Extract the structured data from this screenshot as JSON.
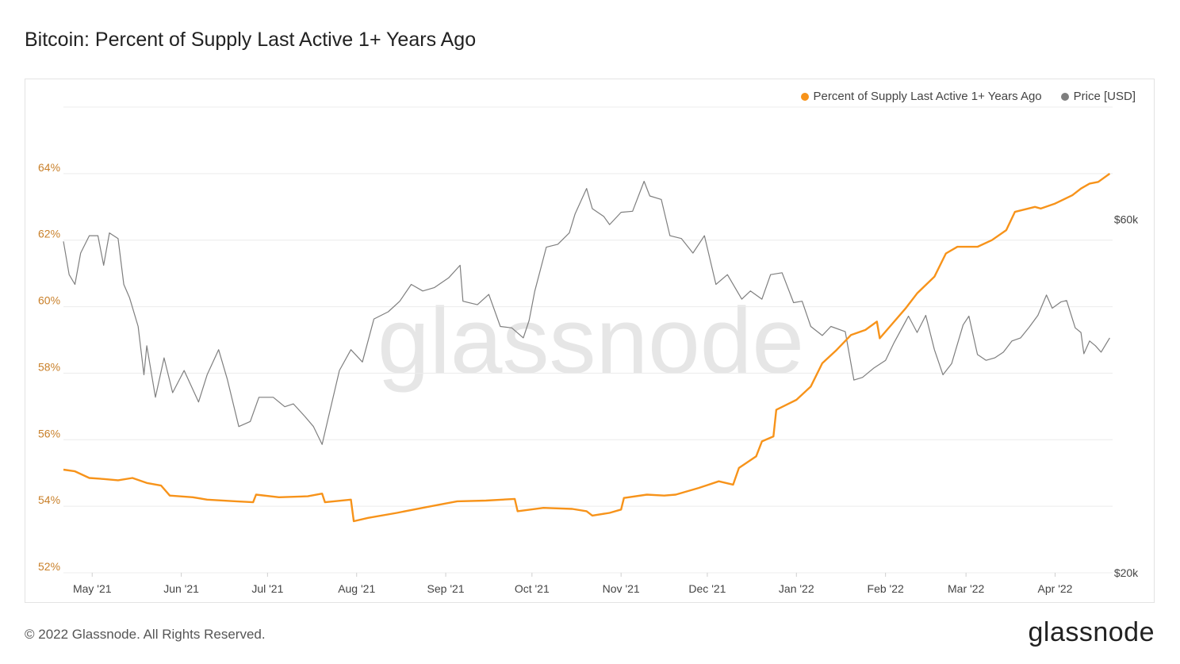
{
  "title": "Bitcoin: Percent of Supply Last Active 1+ Years Ago",
  "footer": {
    "copyright": "© 2022 Glassnode. All Rights Reserved.",
    "logo": "glassnode"
  },
  "watermark": "glassnode",
  "colors": {
    "supply": "#f7931a",
    "price": "#7f7f7f",
    "left_axis": "#c9802a",
    "grid": "#ececec"
  },
  "chart_data": {
    "type": "line",
    "title": "Bitcoin: Percent of Supply Last Active 1+ Years Ago",
    "legend_position": "top-right",
    "grid": true,
    "x_range": [
      "2021-04-21",
      "2022-04-21"
    ],
    "x_ticks": [
      "May '21",
      "Jun '21",
      "Jul '21",
      "Aug '21",
      "Sep '21",
      "Oct '21",
      "Nov '21",
      "Dec '21",
      "Jan '22",
      "Feb '22",
      "Mar '22",
      "Apr '22"
    ],
    "y_left": {
      "ticks": [
        "52%",
        "54%",
        "56%",
        "58%",
        "60%",
        "62%",
        "64%"
      ],
      "range": [
        52,
        66
      ],
      "unit": "%"
    },
    "y_right": {
      "ticks": [
        "$20k",
        "$60k"
      ],
      "scale": "log",
      "range": [
        20000,
        85000
      ]
    },
    "series": [
      {
        "name": "Percent of Supply Last Active 1+ Years Ago",
        "axis": "left",
        "points": [
          [
            "2021-04-21",
            55.1
          ],
          [
            "2021-04-25",
            55.05
          ],
          [
            "2021-04-30",
            54.85
          ],
          [
            "2021-05-05",
            54.82
          ],
          [
            "2021-05-10",
            54.78
          ],
          [
            "2021-05-15",
            54.85
          ],
          [
            "2021-05-20",
            54.7
          ],
          [
            "2021-05-25",
            54.62
          ],
          [
            "2021-05-28",
            54.32
          ],
          [
            "2021-06-05",
            54.27
          ],
          [
            "2021-06-10",
            54.2
          ],
          [
            "2021-06-20",
            54.15
          ],
          [
            "2021-06-26",
            54.12
          ],
          [
            "2021-06-27",
            54.35
          ],
          [
            "2021-07-05",
            54.27
          ],
          [
            "2021-07-15",
            54.3
          ],
          [
            "2021-07-20",
            54.38
          ],
          [
            "2021-07-21",
            54.12
          ],
          [
            "2021-07-30",
            54.2
          ],
          [
            "2021-07-31",
            53.55
          ],
          [
            "2021-08-05",
            53.65
          ],
          [
            "2021-08-15",
            53.8
          ],
          [
            "2021-08-25",
            53.97
          ],
          [
            "2021-09-05",
            54.15
          ],
          [
            "2021-09-15",
            54.17
          ],
          [
            "2021-09-25",
            54.22
          ],
          [
            "2021-09-26",
            53.85
          ],
          [
            "2021-10-05",
            53.95
          ],
          [
            "2021-10-15",
            53.92
          ],
          [
            "2021-10-20",
            53.85
          ],
          [
            "2021-10-22",
            53.72
          ],
          [
            "2021-10-28",
            53.8
          ],
          [
            "2021-11-01",
            53.9
          ],
          [
            "2021-11-02",
            54.25
          ],
          [
            "2021-11-10",
            54.35
          ],
          [
            "2021-11-16",
            54.32
          ],
          [
            "2021-11-20",
            54.35
          ],
          [
            "2021-11-28",
            54.55
          ],
          [
            "2021-12-05",
            54.75
          ],
          [
            "2021-12-10",
            54.65
          ],
          [
            "2021-12-12",
            55.15
          ],
          [
            "2021-12-18",
            55.5
          ],
          [
            "2021-12-20",
            55.95
          ],
          [
            "2021-12-24",
            56.1
          ],
          [
            "2021-12-25",
            56.9
          ],
          [
            "2022-01-01",
            57.2
          ],
          [
            "2022-01-06",
            57.6
          ],
          [
            "2022-01-10",
            58.3
          ],
          [
            "2022-01-15",
            58.7
          ],
          [
            "2022-01-20",
            59.15
          ],
          [
            "2022-01-25",
            59.3
          ],
          [
            "2022-01-29",
            59.55
          ],
          [
            "2022-01-30",
            59.05
          ],
          [
            "2022-02-03",
            59.45
          ],
          [
            "2022-02-08",
            59.95
          ],
          [
            "2022-02-12",
            60.4
          ],
          [
            "2022-02-18",
            60.9
          ],
          [
            "2022-02-22",
            61.6
          ],
          [
            "2022-02-26",
            61.8
          ],
          [
            "2022-03-05",
            61.8
          ],
          [
            "2022-03-10",
            62.0
          ],
          [
            "2022-03-15",
            62.3
          ],
          [
            "2022-03-18",
            62.85
          ],
          [
            "2022-03-25",
            63.0
          ],
          [
            "2022-03-27",
            62.95
          ],
          [
            "2022-04-01",
            63.1
          ],
          [
            "2022-04-07",
            63.35
          ],
          [
            "2022-04-10",
            63.55
          ],
          [
            "2022-04-13",
            63.7
          ],
          [
            "2022-04-16",
            63.75
          ],
          [
            "2022-04-20",
            64.0
          ]
        ]
      },
      {
        "name": "Price [USD]",
        "axis": "right",
        "points": [
          [
            "2021-04-21",
            56000
          ],
          [
            "2021-04-23",
            50500
          ],
          [
            "2021-04-25",
            49000
          ],
          [
            "2021-04-27",
            54000
          ],
          [
            "2021-04-30",
            57000
          ],
          [
            "2021-05-03",
            57000
          ],
          [
            "2021-05-05",
            52000
          ],
          [
            "2021-05-07",
            57500
          ],
          [
            "2021-05-10",
            56500
          ],
          [
            "2021-05-12",
            49000
          ],
          [
            "2021-05-14",
            47000
          ],
          [
            "2021-05-17",
            43000
          ],
          [
            "2021-05-19",
            37000
          ],
          [
            "2021-05-20",
            40500
          ],
          [
            "2021-05-23",
            34500
          ],
          [
            "2021-05-26",
            39000
          ],
          [
            "2021-05-29",
            35000
          ],
          [
            "2021-06-02",
            37500
          ],
          [
            "2021-06-07",
            34000
          ],
          [
            "2021-06-10",
            37000
          ],
          [
            "2021-06-14",
            40000
          ],
          [
            "2021-06-17",
            36500
          ],
          [
            "2021-06-21",
            31500
          ],
          [
            "2021-06-25",
            32000
          ],
          [
            "2021-06-28",
            34500
          ],
          [
            "2021-07-03",
            34500
          ],
          [
            "2021-07-07",
            33500
          ],
          [
            "2021-07-10",
            33800
          ],
          [
            "2021-07-14",
            32500
          ],
          [
            "2021-07-17",
            31500
          ],
          [
            "2021-07-20",
            29800
          ],
          [
            "2021-07-22",
            32200
          ],
          [
            "2021-07-26",
            37500
          ],
          [
            "2021-07-30",
            40000
          ],
          [
            "2021-08-03",
            38500
          ],
          [
            "2021-08-07",
            44000
          ],
          [
            "2021-08-12",
            45000
          ],
          [
            "2021-08-16",
            46500
          ],
          [
            "2021-08-20",
            49000
          ],
          [
            "2021-08-24",
            48000
          ],
          [
            "2021-08-28",
            48500
          ],
          [
            "2021-09-02",
            50000
          ],
          [
            "2021-09-06",
            52000
          ],
          [
            "2021-09-07",
            46500
          ],
          [
            "2021-09-12",
            46000
          ],
          [
            "2021-09-16",
            47500
          ],
          [
            "2021-09-20",
            43000
          ],
          [
            "2021-09-24",
            42800
          ],
          [
            "2021-09-28",
            41500
          ],
          [
            "2021-09-30",
            43800
          ],
          [
            "2021-10-02",
            48000
          ],
          [
            "2021-10-06",
            55000
          ],
          [
            "2021-10-10",
            55500
          ],
          [
            "2021-10-14",
            57500
          ],
          [
            "2021-10-16",
            61000
          ],
          [
            "2021-10-20",
            66000
          ],
          [
            "2021-10-22",
            62000
          ],
          [
            "2021-10-26",
            60500
          ],
          [
            "2021-10-28",
            59000
          ],
          [
            "2021-11-01",
            61300
          ],
          [
            "2021-11-05",
            61500
          ],
          [
            "2021-11-09",
            67500
          ],
          [
            "2021-11-11",
            64500
          ],
          [
            "2021-11-15",
            63800
          ],
          [
            "2021-11-18",
            57000
          ],
          [
            "2021-11-22",
            56500
          ],
          [
            "2021-11-26",
            54000
          ],
          [
            "2021-11-30",
            57000
          ],
          [
            "2021-12-04",
            49000
          ],
          [
            "2021-12-08",
            50500
          ],
          [
            "2021-12-13",
            46800
          ],
          [
            "2021-12-16",
            48000
          ],
          [
            "2021-12-20",
            46800
          ],
          [
            "2021-12-23",
            50500
          ],
          [
            "2021-12-27",
            50800
          ],
          [
            "2021-12-31",
            46300
          ],
          [
            "2022-01-03",
            46500
          ],
          [
            "2022-01-06",
            43000
          ],
          [
            "2022-01-10",
            41800
          ],
          [
            "2022-01-13",
            43000
          ],
          [
            "2022-01-18",
            42300
          ],
          [
            "2022-01-21",
            36400
          ],
          [
            "2022-01-24",
            36700
          ],
          [
            "2022-01-28",
            37800
          ],
          [
            "2022-02-01",
            38700
          ],
          [
            "2022-02-04",
            40900
          ],
          [
            "2022-02-09",
            44400
          ],
          [
            "2022-02-12",
            42200
          ],
          [
            "2022-02-15",
            44500
          ],
          [
            "2022-02-18",
            40000
          ],
          [
            "2022-02-21",
            37000
          ],
          [
            "2022-02-24",
            38300
          ],
          [
            "2022-02-28",
            43200
          ],
          [
            "2022-03-02",
            44400
          ],
          [
            "2022-03-05",
            39400
          ],
          [
            "2022-03-08",
            38700
          ],
          [
            "2022-03-11",
            39000
          ],
          [
            "2022-03-14",
            39700
          ],
          [
            "2022-03-17",
            41100
          ],
          [
            "2022-03-20",
            41500
          ],
          [
            "2022-03-23",
            42900
          ],
          [
            "2022-03-26",
            44500
          ],
          [
            "2022-03-29",
            47400
          ],
          [
            "2022-03-31",
            45500
          ],
          [
            "2022-04-03",
            46400
          ],
          [
            "2022-04-05",
            46600
          ],
          [
            "2022-04-08",
            42800
          ],
          [
            "2022-04-10",
            42200
          ],
          [
            "2022-04-11",
            39500
          ],
          [
            "2022-04-13",
            41100
          ],
          [
            "2022-04-15",
            40500
          ],
          [
            "2022-04-17",
            39700
          ],
          [
            "2022-04-20",
            41500
          ]
        ]
      }
    ]
  }
}
